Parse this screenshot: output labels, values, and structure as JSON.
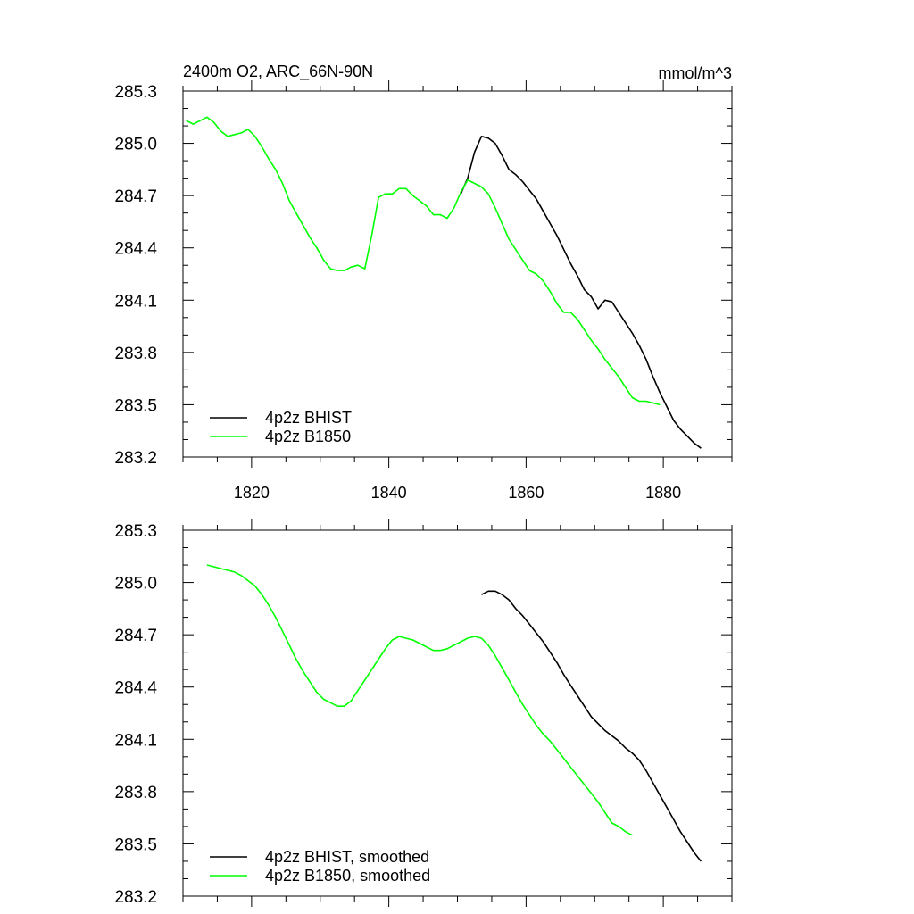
{
  "chart_data": [
    {
      "type": "line",
      "title": "2400m O2, ARC_66N-90N",
      "units": "mmol/m^3",
      "xlim": [
        1810,
        1890
      ],
      "ylim": [
        283.2,
        285.3
      ],
      "x_ticks": [
        1820,
        1840,
        1860,
        1880
      ],
      "y_ticks": [
        "283.2",
        "283.5",
        "283.8",
        "284.1",
        "284.4",
        "284.7",
        "285.0",
        "285.3"
      ],
      "legend_position": "bottom-left",
      "series": [
        {
          "name": "4p2z BHIST",
          "color": "#000000",
          "points": [
            [
              1850.5,
              284.71
            ],
            [
              1851.5,
              284.8
            ],
            [
              1852.5,
              284.95
            ],
            [
              1853.5,
              285.04
            ],
            [
              1854.5,
              285.03
            ],
            [
              1855.5,
              285.0
            ],
            [
              1856.5,
              284.93
            ],
            [
              1857.5,
              284.85
            ],
            [
              1858.5,
              284.82
            ],
            [
              1859.5,
              284.78
            ],
            [
              1860.5,
              284.73
            ],
            [
              1861.5,
              284.68
            ],
            [
              1862.5,
              284.61
            ],
            [
              1863.5,
              284.54
            ],
            [
              1864.5,
              284.47
            ],
            [
              1865.5,
              284.39
            ],
            [
              1866.5,
              284.31
            ],
            [
              1867.5,
              284.24
            ],
            [
              1868.5,
              284.16
            ],
            [
              1869.5,
              284.12
            ],
            [
              1870.5,
              284.05
            ],
            [
              1871.5,
              284.1
            ],
            [
              1872.5,
              284.09
            ],
            [
              1873.5,
              284.03
            ],
            [
              1874.5,
              283.97
            ],
            [
              1875.5,
              283.91
            ],
            [
              1876.5,
              283.84
            ],
            [
              1877.5,
              283.76
            ],
            [
              1878.5,
              283.66
            ],
            [
              1879.5,
              283.57
            ],
            [
              1880.5,
              283.49
            ],
            [
              1881.5,
              283.41
            ],
            [
              1882.5,
              283.36
            ],
            [
              1883.5,
              283.32
            ],
            [
              1884.5,
              283.28
            ],
            [
              1885.5,
              283.25
            ]
          ]
        },
        {
          "name": "4p2z B1850",
          "color": "#00ff00",
          "points": [
            [
              1810.5,
              285.13
            ],
            [
              1811.5,
              285.11
            ],
            [
              1812.5,
              285.13
            ],
            [
              1813.5,
              285.15
            ],
            [
              1814.5,
              285.12
            ],
            [
              1815.5,
              285.07
            ],
            [
              1816.5,
              285.04
            ],
            [
              1817.5,
              285.05
            ],
            [
              1818.5,
              285.06
            ],
            [
              1819.5,
              285.08
            ],
            [
              1820.5,
              285.04
            ],
            [
              1821.5,
              284.98
            ],
            [
              1822.5,
              284.91
            ],
            [
              1823.5,
              284.85
            ],
            [
              1824.5,
              284.77
            ],
            [
              1825.5,
              284.67
            ],
            [
              1826.5,
              284.6
            ],
            [
              1827.5,
              284.53
            ],
            [
              1828.5,
              284.46
            ],
            [
              1829.5,
              284.4
            ],
            [
              1830.5,
              284.33
            ],
            [
              1831.5,
              284.28
            ],
            [
              1832.5,
              284.27
            ],
            [
              1833.5,
              284.27
            ],
            [
              1834.5,
              284.29
            ],
            [
              1835.5,
              284.3
            ],
            [
              1836.5,
              284.28
            ],
            [
              1837.5,
              284.47
            ],
            [
              1838.5,
              284.69
            ],
            [
              1839.5,
              284.71
            ],
            [
              1840.5,
              284.71
            ],
            [
              1841.5,
              284.74
            ],
            [
              1842.5,
              284.74
            ],
            [
              1843.5,
              284.7
            ],
            [
              1844.5,
              284.67
            ],
            [
              1845.5,
              284.64
            ],
            [
              1846.5,
              284.59
            ],
            [
              1847.5,
              284.59
            ],
            [
              1848.5,
              284.57
            ],
            [
              1849.5,
              284.63
            ],
            [
              1850.5,
              284.72
            ],
            [
              1851.5,
              284.79
            ],
            [
              1852.5,
              284.77
            ],
            [
              1853.5,
              284.75
            ],
            [
              1854.5,
              284.71
            ],
            [
              1855.5,
              284.63
            ],
            [
              1856.5,
              284.54
            ],
            [
              1857.5,
              284.45
            ],
            [
              1858.5,
              284.39
            ],
            [
              1859.5,
              284.33
            ],
            [
              1860.5,
              284.27
            ],
            [
              1861.5,
              284.25
            ],
            [
              1862.5,
              284.21
            ],
            [
              1863.5,
              284.15
            ],
            [
              1864.5,
              284.08
            ],
            [
              1865.5,
              284.03
            ],
            [
              1866.5,
              284.03
            ],
            [
              1867.5,
              283.99
            ],
            [
              1868.5,
              283.93
            ],
            [
              1869.5,
              283.87
            ],
            [
              1870.5,
              283.82
            ],
            [
              1871.5,
              283.76
            ],
            [
              1872.5,
              283.71
            ],
            [
              1873.5,
              283.66
            ],
            [
              1874.5,
              283.6
            ],
            [
              1875.5,
              283.54
            ],
            [
              1876.5,
              283.52
            ],
            [
              1877.5,
              283.52
            ],
            [
              1878.5,
              283.51
            ],
            [
              1879.5,
              283.5
            ]
          ]
        }
      ]
    },
    {
      "type": "line",
      "xlim": [
        1810,
        1890
      ],
      "ylim": [
        283.2,
        285.3
      ],
      "y_ticks": [
        "283.2",
        "283.5",
        "283.8",
        "284.1",
        "284.4",
        "284.7",
        "285.0",
        "285.3"
      ],
      "legend_position": "bottom-left",
      "series": [
        {
          "name": "4p2z BHIST, smoothed",
          "color": "#000000",
          "points": [
            [
              1853.5,
              284.93
            ],
            [
              1854.5,
              284.95
            ],
            [
              1855.5,
              284.95
            ],
            [
              1856.5,
              284.93
            ],
            [
              1857.5,
              284.9
            ],
            [
              1858.5,
              284.85
            ],
            [
              1859.5,
              284.81
            ],
            [
              1860.5,
              284.76
            ],
            [
              1861.5,
              284.71
            ],
            [
              1862.5,
              284.66
            ],
            [
              1863.5,
              284.6
            ],
            [
              1864.5,
              284.54
            ],
            [
              1865.5,
              284.47
            ],
            [
              1866.5,
              284.41
            ],
            [
              1867.5,
              284.35
            ],
            [
              1868.5,
              284.29
            ],
            [
              1869.5,
              284.23
            ],
            [
              1870.5,
              284.19
            ],
            [
              1871.5,
              284.15
            ],
            [
              1872.5,
              284.12
            ],
            [
              1873.5,
              284.09
            ],
            [
              1874.5,
              284.05
            ],
            [
              1875.5,
              284.02
            ],
            [
              1876.5,
              283.98
            ],
            [
              1877.5,
              283.92
            ],
            [
              1878.5,
              283.85
            ],
            [
              1879.5,
              283.78
            ],
            [
              1880.5,
              283.71
            ],
            [
              1881.5,
              283.64
            ],
            [
              1882.5,
              283.57
            ],
            [
              1883.5,
              283.51
            ],
            [
              1884.5,
              283.45
            ],
            [
              1885.5,
              283.4
            ]
          ]
        },
        {
          "name": "4p2z B1850, smoothed",
          "color": "#00ff00",
          "points": [
            [
              1813.5,
              285.1
            ],
            [
              1814.5,
              285.09
            ],
            [
              1815.5,
              285.08
            ],
            [
              1816.5,
              285.07
            ],
            [
              1817.5,
              285.06
            ],
            [
              1818.5,
              285.04
            ],
            [
              1819.5,
              285.01
            ],
            [
              1820.5,
              284.98
            ],
            [
              1821.5,
              284.93
            ],
            [
              1822.5,
              284.87
            ],
            [
              1823.5,
              284.8
            ],
            [
              1824.5,
              284.72
            ],
            [
              1825.5,
              284.64
            ],
            [
              1826.5,
              284.56
            ],
            [
              1827.5,
              284.49
            ],
            [
              1828.5,
              284.43
            ],
            [
              1829.5,
              284.37
            ],
            [
              1830.5,
              284.33
            ],
            [
              1831.5,
              284.31
            ],
            [
              1832.5,
              284.29
            ],
            [
              1833.5,
              284.29
            ],
            [
              1834.5,
              284.32
            ],
            [
              1835.5,
              284.38
            ],
            [
              1836.5,
              284.44
            ],
            [
              1837.5,
              284.5
            ],
            [
              1838.5,
              284.56
            ],
            [
              1839.5,
              284.62
            ],
            [
              1840.5,
              284.67
            ],
            [
              1841.5,
              284.69
            ],
            [
              1842.5,
              284.68
            ],
            [
              1843.5,
              284.67
            ],
            [
              1844.5,
              284.65
            ],
            [
              1845.5,
              284.63
            ],
            [
              1846.5,
              284.61
            ],
            [
              1847.5,
              284.61
            ],
            [
              1848.5,
              284.62
            ],
            [
              1849.5,
              284.64
            ],
            [
              1850.5,
              284.66
            ],
            [
              1851.5,
              284.68
            ],
            [
              1852.5,
              284.69
            ],
            [
              1853.5,
              284.68
            ],
            [
              1854.5,
              284.64
            ],
            [
              1855.5,
              284.58
            ],
            [
              1856.5,
              284.51
            ],
            [
              1857.5,
              284.44
            ],
            [
              1858.5,
              284.37
            ],
            [
              1859.5,
              284.3
            ],
            [
              1860.5,
              284.24
            ],
            [
              1861.5,
              284.18
            ],
            [
              1862.5,
              284.13
            ],
            [
              1863.5,
              284.09
            ],
            [
              1864.5,
              284.04
            ],
            [
              1865.5,
              283.99
            ],
            [
              1866.5,
              283.94
            ],
            [
              1867.5,
              283.89
            ],
            [
              1868.5,
              283.84
            ],
            [
              1869.5,
              283.79
            ],
            [
              1870.5,
              283.74
            ],
            [
              1871.5,
              283.68
            ],
            [
              1872.5,
              283.62
            ],
            [
              1873.5,
              283.6
            ],
            [
              1874.5,
              283.57
            ],
            [
              1875.5,
              283.55
            ]
          ]
        }
      ]
    }
  ]
}
